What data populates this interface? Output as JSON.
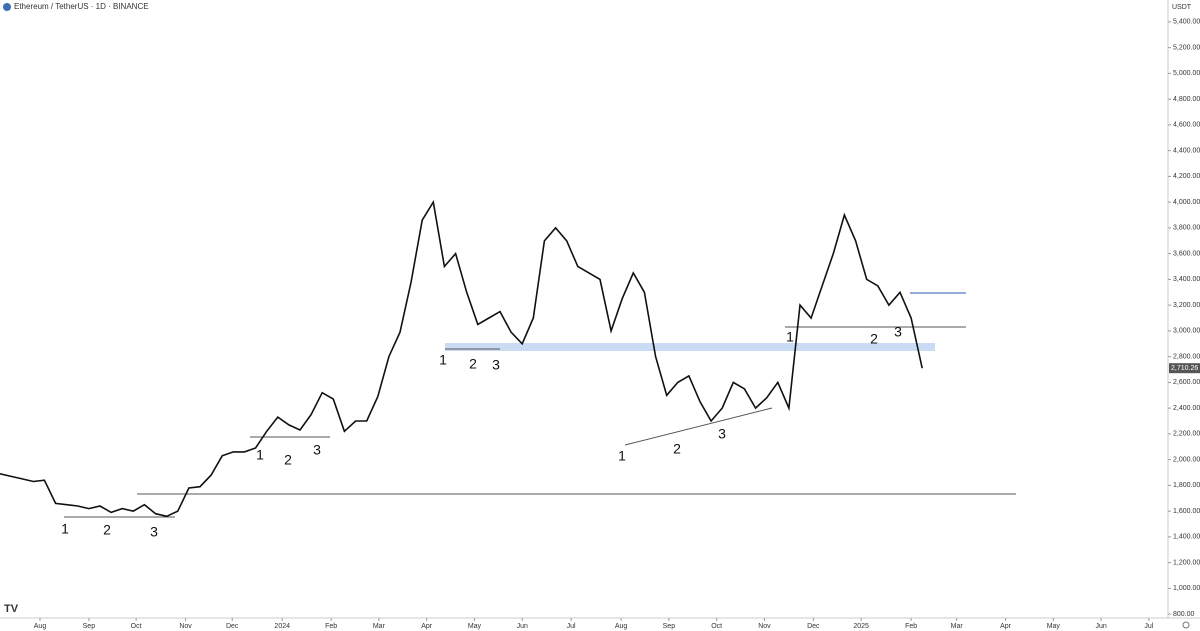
{
  "chart_data": {
    "type": "line",
    "title": "Ethereum / TetherUS · 1D · BINANCE",
    "currency": "USDT",
    "color": "#111111",
    "values": [
      1890,
      1870,
      1850,
      1830,
      1840,
      1660,
      1650,
      1640,
      1620,
      1640,
      1590,
      1620,
      1600,
      1650,
      1580,
      1560,
      1600,
      1780,
      1790,
      1880,
      2030,
      2060,
      2060,
      2090,
      2220,
      2330,
      2270,
      2230,
      2350,
      2520,
      2470,
      2220,
      2300,
      2300,
      2490,
      2800,
      2990,
      3380,
      3860,
      4000,
      3500,
      3600,
      3300,
      3050,
      3100,
      3150,
      2990,
      2900,
      3100,
      3700,
      3800,
      3700,
      3500,
      3450,
      3400,
      3000,
      3250,
      3450,
      3300,
      2800,
      2500,
      2600,
      2650,
      2450,
      2300,
      2400,
      2600,
      2550,
      2400,
      2480,
      2600,
      2400,
      3200,
      3100,
      3350,
      3600,
      3900,
      3700,
      3400,
      3350,
      3200,
      3300,
      3100,
      2710
    ],
    "last_price": {
      "value": 2710.26,
      "label": "2,710.26"
    },
    "xlim": [
      0,
      108
    ],
    "xticks": [
      {
        "value": 3.6,
        "label": "Aug"
      },
      {
        "value": 8.0,
        "label": "Sep"
      },
      {
        "value": 12.25,
        "label": "Oct"
      },
      {
        "value": 16.7,
        "label": "Nov"
      },
      {
        "value": 20.9,
        "label": "Dec"
      },
      {
        "value": 25.4,
        "label": "2024"
      },
      {
        "value": 29.8,
        "label": "Feb"
      },
      {
        "value": 34.1,
        "label": "Mar"
      },
      {
        "value": 38.4,
        "label": "Apr"
      },
      {
        "value": 42.7,
        "label": "May"
      },
      {
        "value": 47.0,
        "label": "Jun"
      },
      {
        "value": 51.4,
        "label": "Jul"
      },
      {
        "value": 55.9,
        "label": "Aug"
      },
      {
        "value": 60.2,
        "label": "Sep"
      },
      {
        "value": 64.5,
        "label": "Oct"
      },
      {
        "value": 68.8,
        "label": "Nov"
      },
      {
        "value": 73.2,
        "label": "Dec"
      },
      {
        "value": 77.5,
        "label": "2025"
      },
      {
        "value": 82.0,
        "label": "Feb"
      },
      {
        "value": 86.1,
        "label": "Mar"
      },
      {
        "value": 90.5,
        "label": "Apr"
      },
      {
        "value": 94.8,
        "label": "May"
      },
      {
        "value": 99.1,
        "label": "Jun"
      },
      {
        "value": 103.4,
        "label": "Jul"
      }
    ],
    "ylim": [
      770,
      5570
    ],
    "yticks": [
      {
        "value": 800,
        "label": "800.00"
      },
      {
        "value": 1000,
        "label": "1,000.00"
      },
      {
        "value": 1200,
        "label": "1,200.00"
      },
      {
        "value": 1400,
        "label": "1,400.00"
      },
      {
        "value": 1600,
        "label": "1,600.00"
      },
      {
        "value": 1800,
        "label": "1,800.00"
      },
      {
        "value": 2000,
        "label": "2,000.00"
      },
      {
        "value": 2200,
        "label": "2,200.00"
      },
      {
        "value": 2400,
        "label": "2,400.00"
      },
      {
        "value": 2600,
        "label": "2,600.00"
      },
      {
        "value": 2800,
        "label": "2,800.00"
      },
      {
        "value": 3000,
        "label": "3,000.00"
      },
      {
        "value": 3200,
        "label": "3,200.00"
      },
      {
        "value": 3400,
        "label": "3,400.00"
      },
      {
        "value": 3600,
        "label": "3,600.00"
      },
      {
        "value": 3800,
        "label": "3,800.00"
      },
      {
        "value": 4000,
        "label": "4,000.00"
      },
      {
        "value": 4200,
        "label": "4,200.00"
      },
      {
        "value": 4400,
        "label": "4,400.00"
      },
      {
        "value": 4600,
        "label": "4,600.00"
      },
      {
        "value": 4800,
        "label": "4,800.00"
      },
      {
        "value": 5000,
        "label": "5,000.00"
      },
      {
        "value": 5200,
        "label": "5,200.00"
      },
      {
        "value": 5400,
        "label": "5,400.00"
      }
    ],
    "annotations": [
      "1",
      "2",
      "3",
      "1",
      "2",
      "3",
      "1",
      "2",
      "3",
      "1",
      "2",
      "3",
      "1",
      "2",
      "3"
    ]
  }
}
